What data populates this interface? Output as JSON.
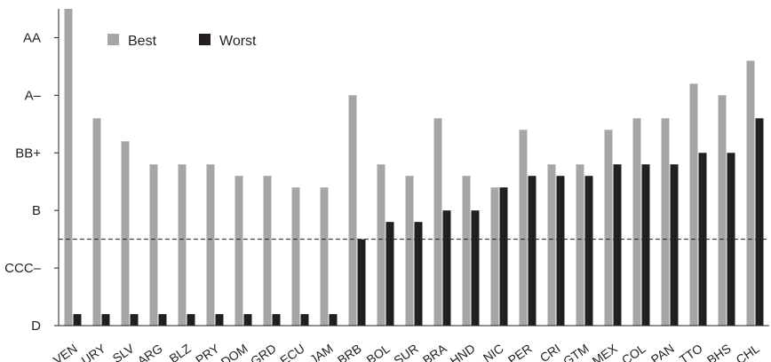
{
  "chart_data": {
    "type": "bar",
    "title": "",
    "xlabel": "",
    "ylabel": "",
    "y_ticks": [
      {
        "label": "D",
        "value": 0
      },
      {
        "label": "CCC–",
        "value": 1
      },
      {
        "label": "B",
        "value": 2
      },
      {
        "label": "BB+",
        "value": 3
      },
      {
        "label": "A–",
        "value": 4
      },
      {
        "label": "AA",
        "value": 5
      }
    ],
    "ylim": [
      0,
      5.5
    ],
    "categories": [
      "VEN",
      "URY",
      "SLV",
      "ARG",
      "BLZ",
      "PRY",
      "DOM",
      "GRD",
      "ECU",
      "JAM",
      "BRB",
      "BOL",
      "SUR",
      "BRA",
      "HND",
      "NIC",
      "PER",
      "CRI",
      "GTM",
      "MEX",
      "COL",
      "PAN",
      "TTO",
      "BHS",
      "CHL"
    ],
    "series": [
      {
        "name": "Best",
        "color": "#a6a6a6",
        "values": [
          5.5,
          3.6,
          3.2,
          2.8,
          2.8,
          2.8,
          2.6,
          2.6,
          2.4,
          2.4,
          4.0,
          2.8,
          2.6,
          3.6,
          2.6,
          2.4,
          3.4,
          2.8,
          2.8,
          3.4,
          3.6,
          3.6,
          4.2,
          4.0,
          4.6
        ]
      },
      {
        "name": "Worst",
        "color": "#231f20",
        "values": [
          0.2,
          0.2,
          0.2,
          0.2,
          0.2,
          0.2,
          0.2,
          0.2,
          0.2,
          0.2,
          1.5,
          1.8,
          1.8,
          2.0,
          2.0,
          2.4,
          2.6,
          2.6,
          2.6,
          2.8,
          2.8,
          2.8,
          3.0,
          3.0,
          3.6
        ]
      }
    ],
    "reference_line": {
      "value": 1.5,
      "style": "dashed"
    },
    "legend": {
      "placement": "top-left"
    },
    "grid": false
  }
}
